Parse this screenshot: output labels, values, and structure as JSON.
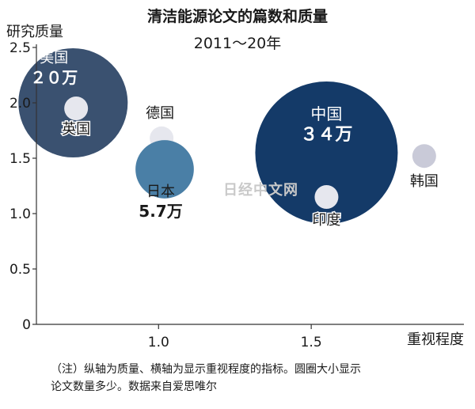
{
  "title": "清洁能源论文的篇数和质量",
  "subtitle": "2011～20年",
  "watermark": "日经中文网",
  "note_line1": "（注）纵轴为质量、横轴为显示重视程度的指标。圆圈大小显示",
  "note_line2": "论文数量多少。数据来自爱思唯尔",
  "chart_data": {
    "type": "scatter",
    "title": "清洁能源论文的篇数和质量",
    "subtitle": "2011～20年",
    "ylabel": "研究质量",
    "xlabel": "重视程度",
    "xlim": [
      0.6,
      2.0
    ],
    "ylim": [
      0,
      2.5
    ],
    "xticks": [
      "1.0",
      "1.5"
    ],
    "yticks": [
      "0",
      "0.5",
      "1.0",
      "1.5",
      "2.0",
      "2.5"
    ],
    "grid": false,
    "points": [
      {
        "name": "美国",
        "x": 0.72,
        "y": 2.0,
        "size_label": "２０万",
        "color": "#3a5170"
      },
      {
        "name": "英国",
        "x": 0.73,
        "y": 1.95,
        "color": "#e6e7ee"
      },
      {
        "name": "德国",
        "x": 1.01,
        "y": 1.68,
        "color": "#e6e7ee"
      },
      {
        "name": "日本",
        "x": 1.02,
        "y": 1.4,
        "size_label": "5.7万",
        "color": "#4a7fa6"
      },
      {
        "name": "中国",
        "x": 1.55,
        "y": 1.55,
        "size_label": "３４万",
        "color": "#143a68"
      },
      {
        "name": "印度",
        "x": 1.55,
        "y": 1.15,
        "color": "#e6e7ee"
      },
      {
        "name": "韩国",
        "x": 1.87,
        "y": 1.52,
        "color": "#c9cad8"
      }
    ]
  }
}
